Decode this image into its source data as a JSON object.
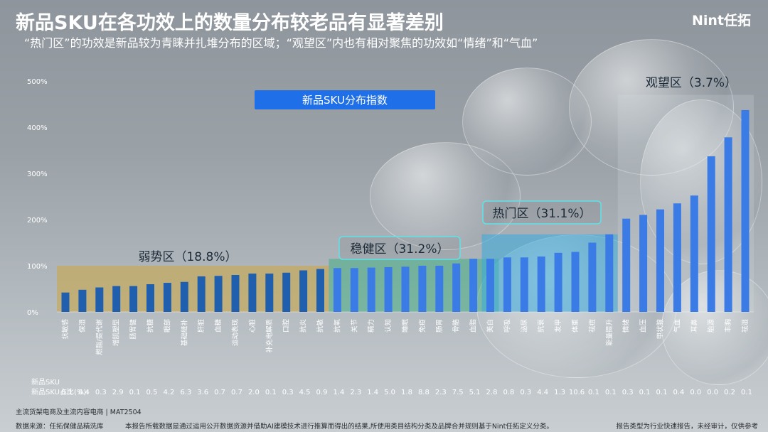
{
  "header": {
    "title": "新品SKU在各功效上的数量分布较老品有显著差别",
    "subtitle": "“热门区”的功效是新品较为青睐并扎堆分布的区域；“观望区”内也有相对聚焦的功效如“情绪”和“气血”",
    "logo": "Nint任拓"
  },
  "footer": {
    "note": "主流货架电商及主流内容电商 | MAT2504",
    "source": "数据来源：任拓保健品精洗库",
    "disclaimer": "本报告所载数据是通过运用公开数据资源并借助AI建模技术进行推算而得出的结果,所使用类目结构分类及品牌合并规则基于Nint任拓定义分类。",
    "report_type": "报告类型为行业快速报告，未经审计，仅供参考"
  },
  "colors": {
    "bar_weak": "#1f5fae",
    "bar_main": "#3a7be6",
    "zone_weak": "#c9a64a",
    "zone_stable": "#2fae7a",
    "zone_hot": "#35a9dd",
    "zone_watch": "#d8dde2",
    "legend_bg": "#1f6fe8"
  },
  "chart_data": {
    "type": "bar",
    "legend": "新品SKU分布指数",
    "yticks": [
      "0%",
      "100%",
      "200%",
      "300%",
      "400%",
      "500%"
    ],
    "ylim": [
      0,
      500
    ],
    "categories": [
      "抗敏感",
      "保湿",
      "燃脂/提代谢",
      "增肌塑型",
      "肠胃健",
      "抗糖",
      "眼部",
      "基础缝补",
      "肝脏",
      "血糖",
      "运动表现",
      "心脏",
      "补充电解质",
      "口腔",
      "抗炎",
      "抗敏",
      "抗氧",
      "关节",
      "精力",
      "认知",
      "睡眠",
      "免疫",
      "肠胃",
      "骨骼",
      "血脂",
      "美白",
      "呼吸",
      "泌尿",
      "抗衰",
      "发甲",
      "体重",
      "祛痘",
      "能量提升",
      "情绪",
      "血压",
      "甲状腺",
      "气血",
      "耳鼻",
      "胎源",
      "丰胸",
      "祛湿"
    ],
    "values": [
      42,
      48,
      53,
      56,
      56,
      60,
      63,
      65,
      77,
      78,
      80,
      83,
      83,
      85,
      90,
      93,
      95,
      95,
      96,
      97,
      98,
      100,
      100,
      105,
      115,
      115,
      118,
      118,
      120,
      128,
      130,
      150,
      168,
      202,
      210,
      222,
      235,
      252,
      337,
      378,
      437
    ],
    "share_label": "新品SKU占比(%):",
    "share": [
      "0.1",
      "0.4",
      "0.3",
      "2.9",
      "0.1",
      "0.5",
      "4.2",
      "6.3",
      "3.6",
      "0.7",
      "0.7",
      "2.0",
      "0.1",
      "0.3",
      "4.5",
      "0.9",
      "1.4",
      "2.3",
      "1.4",
      "5.0",
      "1.8",
      "8.8",
      "2.3",
      "7.5",
      "5.1",
      "2.8",
      "0.8",
      "0.3",
      "4.4",
      "1.3",
      "10.6",
      "0.1",
      "0.1",
      "0.3",
      "0.1",
      "0.1",
      "0.4",
      "0.0",
      "0.0",
      "0.2",
      "0.1"
    ],
    "zones": [
      {
        "label": "弱势区（18.8%）",
        "from": 0,
        "to": 15,
        "height": 100
      },
      {
        "label": "稳健区（31.2%）",
        "from": 16,
        "to": 25,
        "height": 115
      },
      {
        "label": "热门区（31.1%）",
        "from": 25,
        "to": 32,
        "height": 168
      },
      {
        "label": "观望区（3.7%）",
        "from": 33,
        "to": 40,
        "height": 470
      }
    ]
  }
}
